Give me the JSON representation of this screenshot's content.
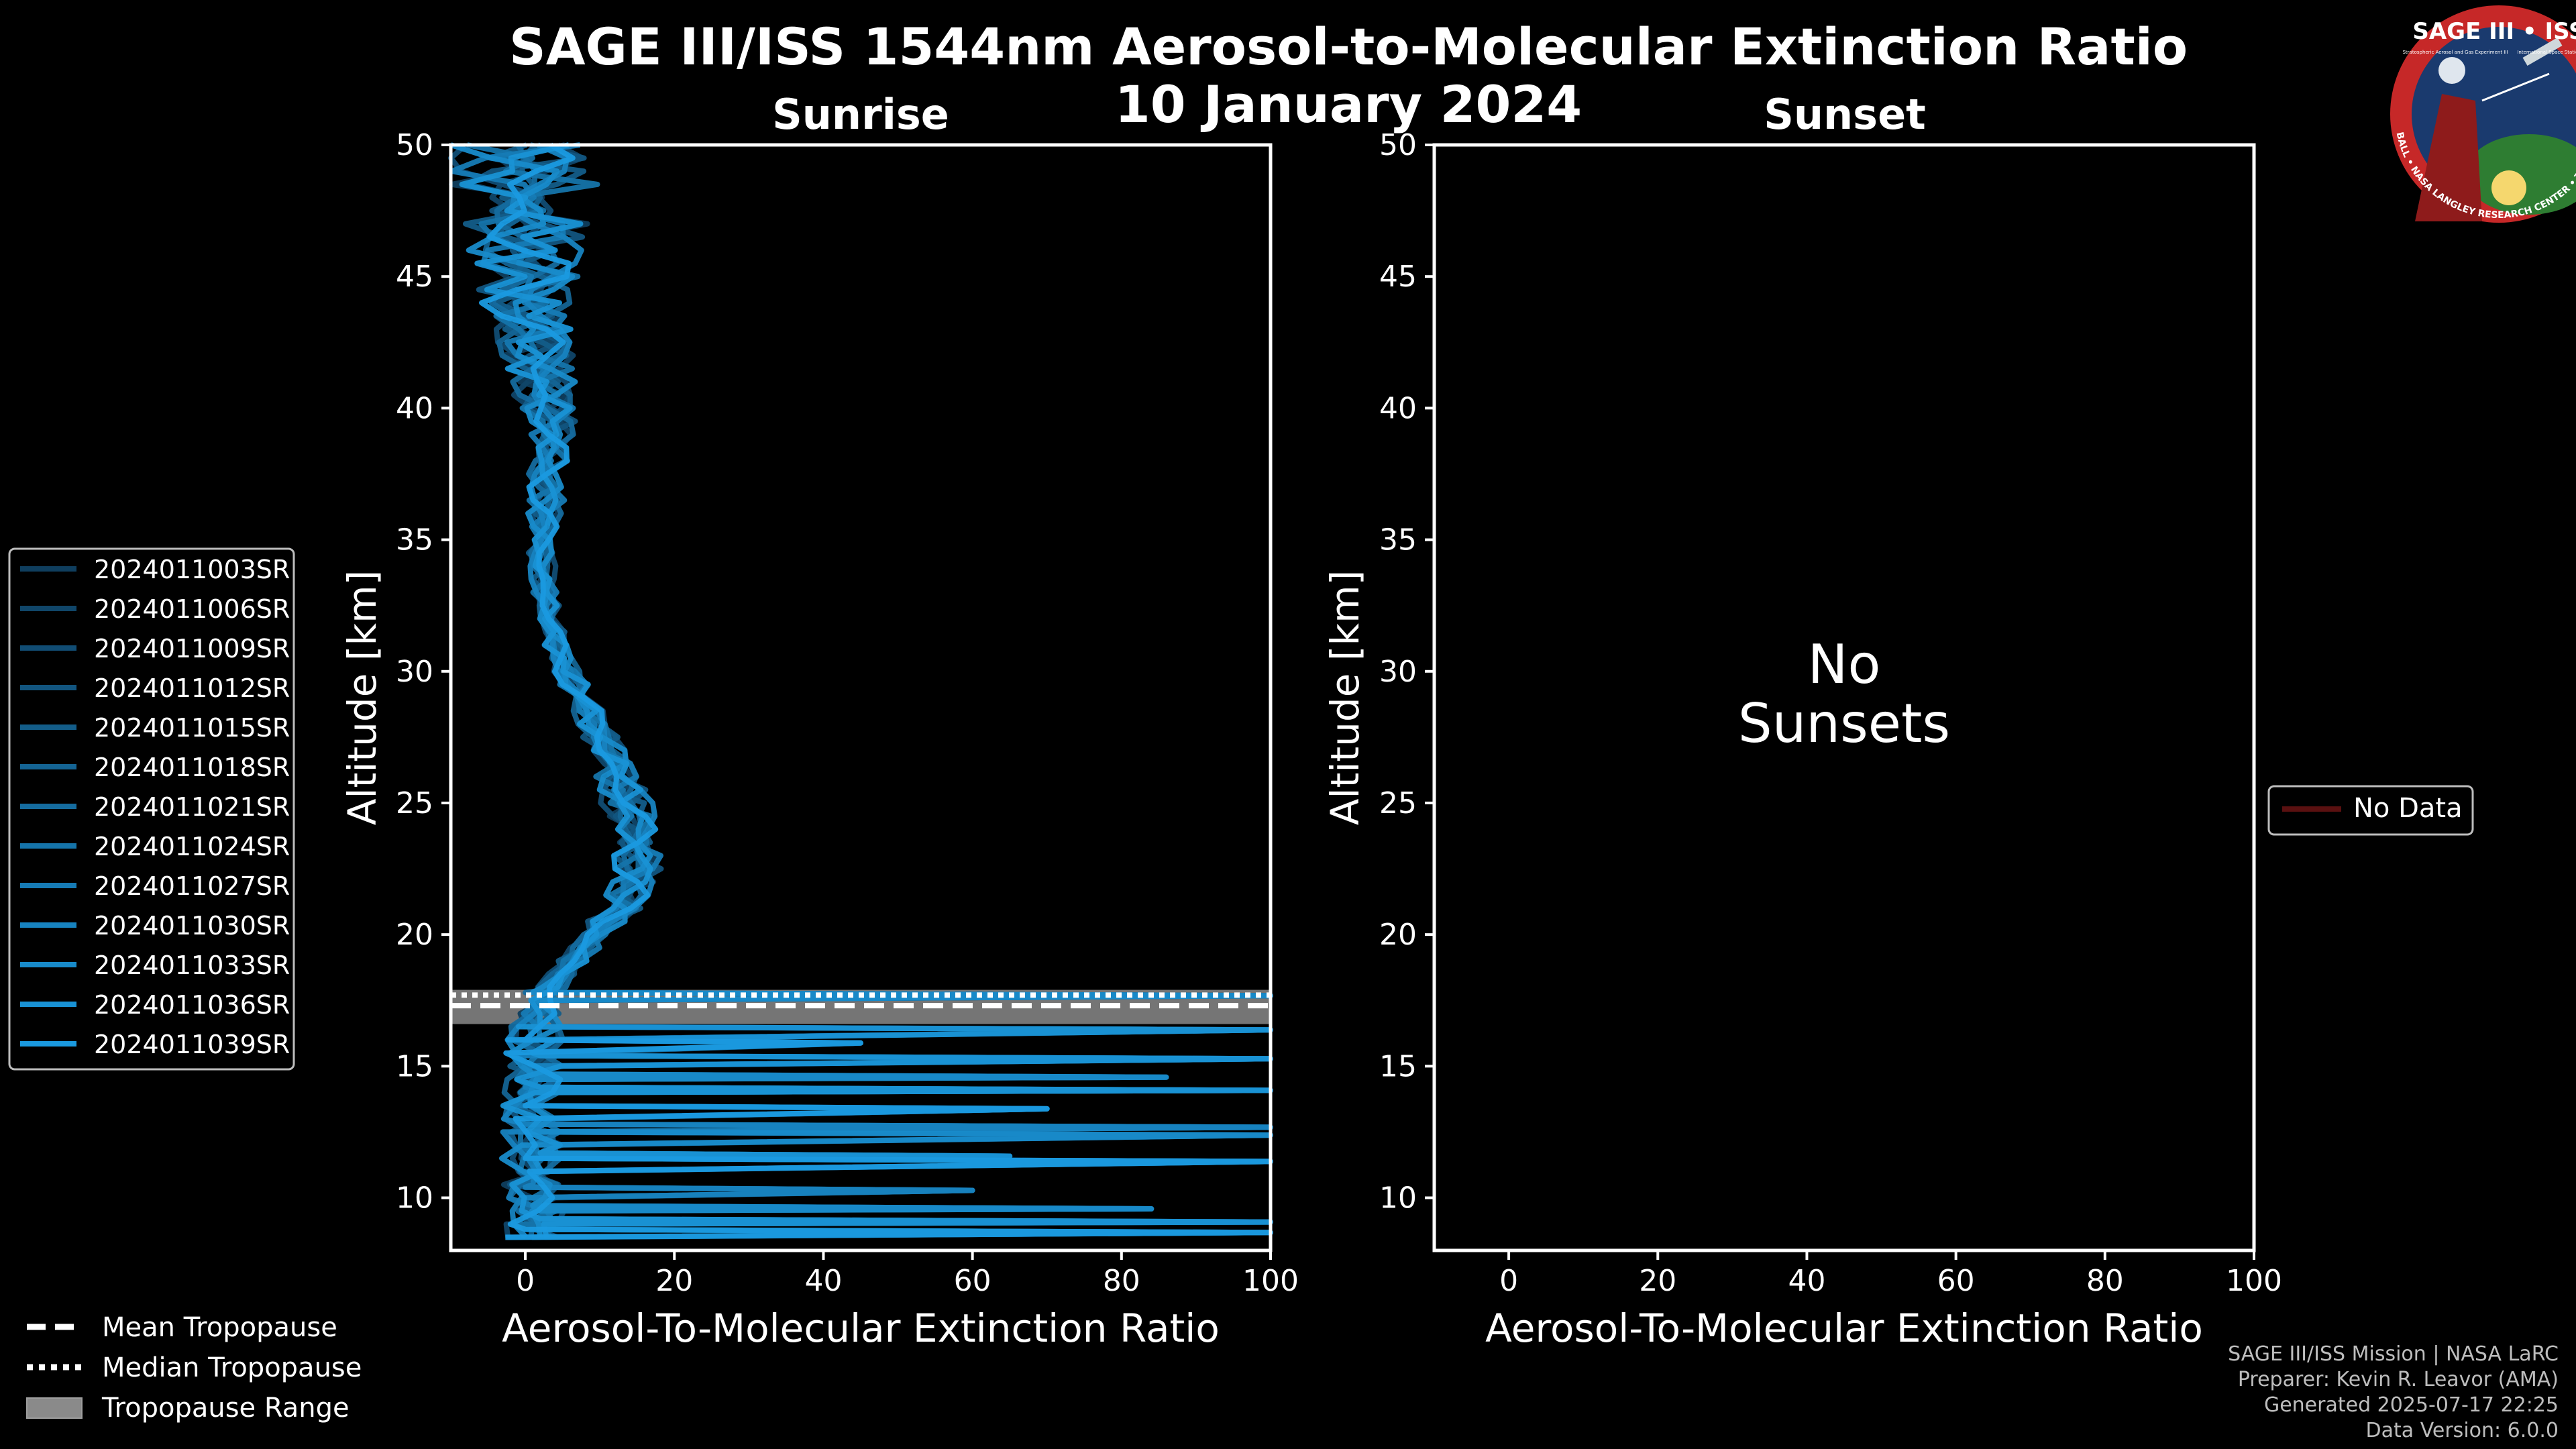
{
  "title_line1": "SAGE III/ISS 1544nm Aerosol-to-Molecular Extinction Ratio",
  "title_line2": "10 January 2024",
  "logo": {
    "top": "SAGE III • ISS",
    "sub_left": "Stratospheric Aerosol and Gas Experiment III",
    "sub_right": "International Space Station",
    "ring": "BALL • NASA LANGLEY RESEARCH CENTER • TAS • ESA",
    "ring_color": "#c62828",
    "bg_color": "#1a3a6e"
  },
  "footer": {
    "line1": "SAGE III/ISS Mission | NASA LaRC",
    "line2": "Preparer: Kevin R. Leavor (AMA)",
    "line3": "Generated 2025-07-17 22:25",
    "line4": "Data Version: 6.0.0"
  },
  "bottom_legend": [
    {
      "label": "Mean Tropopause",
      "style": "dashed"
    },
    {
      "label": "Median Tropopause",
      "style": "dotted"
    },
    {
      "label": "Tropopause Range",
      "style": "band"
    }
  ],
  "sunset_legend": {
    "label": "No Data",
    "color": "#5a1010"
  },
  "colors": {
    "profile_light": "#1a9ae0",
    "profile_dark": "#0f3e5e",
    "band": "#8a8a8a"
  },
  "chart_data": [
    {
      "type": "line",
      "title": "Sunrise",
      "xlabel": "Aerosol-To-Molecular Extinction Ratio",
      "ylabel": "Altitude [km]",
      "xlim": [
        -10,
        100
      ],
      "ylim": [
        8,
        50
      ],
      "xticks": [
        0,
        20,
        40,
        60,
        80,
        100
      ],
      "yticks": [
        10,
        15,
        20,
        25,
        30,
        35,
        40,
        45,
        50
      ],
      "tropopause": {
        "mean": 17.3,
        "median": 17.7,
        "range": [
          16.6,
          17.9
        ]
      },
      "series": [
        {
          "name": "2024011003SR"
        },
        {
          "name": "2024011006SR"
        },
        {
          "name": "2024011009SR"
        },
        {
          "name": "2024011012SR"
        },
        {
          "name": "2024011015SR"
        },
        {
          "name": "2024011018SR"
        },
        {
          "name": "2024011021SR"
        },
        {
          "name": "2024011024SR"
        },
        {
          "name": "2024011027SR"
        },
        {
          "name": "2024011030SR"
        },
        {
          "name": "2024011033SR"
        },
        {
          "name": "2024011036SR"
        },
        {
          "name": "2024011039SR"
        }
      ],
      "profile_y": [
        8.5,
        9,
        9.5,
        10,
        10.5,
        11,
        11.5,
        12,
        12.5,
        13,
        13.5,
        14,
        14.5,
        15,
        15.5,
        16,
        16.5,
        17,
        17.5,
        18,
        18.5,
        19,
        19.5,
        20,
        20.5,
        21,
        21.5,
        22,
        22.5,
        23,
        23.5,
        24,
        24.5,
        25,
        25.5,
        26,
        26.5,
        27,
        27.5,
        28,
        28.5,
        29,
        29.5,
        30,
        30.5,
        31,
        31.5,
        32,
        32.5,
        33,
        33.5,
        34,
        34.5,
        35,
        35.5,
        36,
        36.5,
        37,
        37.5,
        38,
        38.5,
        39,
        39.5,
        40,
        40.5,
        41,
        41.5,
        42,
        42.5,
        43,
        43.5,
        44,
        44.5,
        45,
        45.5,
        46,
        46.5,
        47,
        47.5,
        48,
        48.5,
        49,
        49.5,
        50
      ],
      "profile_center": [
        1,
        1,
        1,
        1,
        1,
        1,
        1,
        1,
        1,
        1,
        1,
        1,
        1,
        1,
        1,
        1,
        1.5,
        2,
        2.5,
        3.5,
        5,
        6.5,
        8,
        9.5,
        11,
        12.5,
        13.5,
        14.5,
        15,
        15,
        15,
        14.8,
        14.3,
        13.6,
        13,
        12.4,
        11.8,
        11,
        10.2,
        9.3,
        8.4,
        7.4,
        6.5,
        5.6,
        4.8,
        4.2,
        3.7,
        3.3,
        2.9,
        2.6,
        2.4,
        2.3,
        2.3,
        2.4,
        2.5,
        2.6,
        2.8,
        3,
        3.2,
        3.3,
        3.4,
        3.3,
        3.1,
        2.9,
        2.6,
        2.3,
        2,
        1.6,
        1.3,
        1,
        0.6,
        0.3,
        0.1,
        0,
        -0.1,
        -0.2,
        -0.3,
        -0.4,
        -0.5,
        -0.5,
        -0.5,
        -0.6,
        -0.6,
        -0.7
      ],
      "profile_spread": [
        3,
        3,
        3,
        3,
        3,
        3,
        3,
        3,
        3,
        3,
        3,
        3,
        3,
        3,
        3,
        3,
        2.5,
        2,
        1.5,
        1.5,
        1.5,
        1.5,
        1.5,
        1.8,
        2,
        2.2,
        2.4,
        2.6,
        2.6,
        2.6,
        2.6,
        2.6,
        2.6,
        2.6,
        2.5,
        2.4,
        2.2,
        2,
        1.8,
        1.7,
        1.6,
        1.5,
        1.4,
        1.3,
        1.2,
        1.2,
        1.2,
        1.2,
        1.2,
        1.2,
        1.2,
        1.3,
        1.4,
        1.5,
        1.6,
        1.7,
        1.8,
        1.9,
        2,
        2.1,
        2.2,
        2.4,
        2.6,
        2.8,
        3,
        3.2,
        3.4,
        3.6,
        3.8,
        4,
        4.3,
        4.6,
        4.9,
        5.2,
        5.5,
        5.8,
        6.1,
        6.4,
        6.7,
        7,
        7.3,
        7.6,
        7.9,
        8.2
      ],
      "low_alt_spikes": [
        {
          "alt": 8.6,
          "x": 100
        },
        {
          "alt": 9.0,
          "x": 100
        },
        {
          "alt": 9.5,
          "x": 84
        },
        {
          "alt": 10.2,
          "x": 60
        },
        {
          "alt": 11.3,
          "x": 100
        },
        {
          "alt": 11.5,
          "x": 65
        },
        {
          "alt": 12.3,
          "x": 100
        },
        {
          "alt": 12.6,
          "x": 100
        },
        {
          "alt": 13.3,
          "x": 70
        },
        {
          "alt": 14.0,
          "x": 100
        },
        {
          "alt": 14.5,
          "x": 86
        },
        {
          "alt": 15.2,
          "x": 100
        },
        {
          "alt": 15.8,
          "x": 45
        },
        {
          "alt": 16.3,
          "x": 100
        },
        {
          "alt": 17.6,
          "x": 100
        }
      ]
    },
    {
      "type": "line",
      "title": "Sunset",
      "xlabel": "Aerosol-To-Molecular Extinction Ratio",
      "ylabel": "Altitude [km]",
      "xlim": [
        -10,
        100
      ],
      "ylim": [
        8,
        50
      ],
      "xticks": [
        0,
        20,
        40,
        60,
        80,
        100
      ],
      "yticks": [
        10,
        15,
        20,
        25,
        30,
        35,
        40,
        45,
        50
      ],
      "annotation": "No\nSunsets",
      "series": []
    }
  ]
}
